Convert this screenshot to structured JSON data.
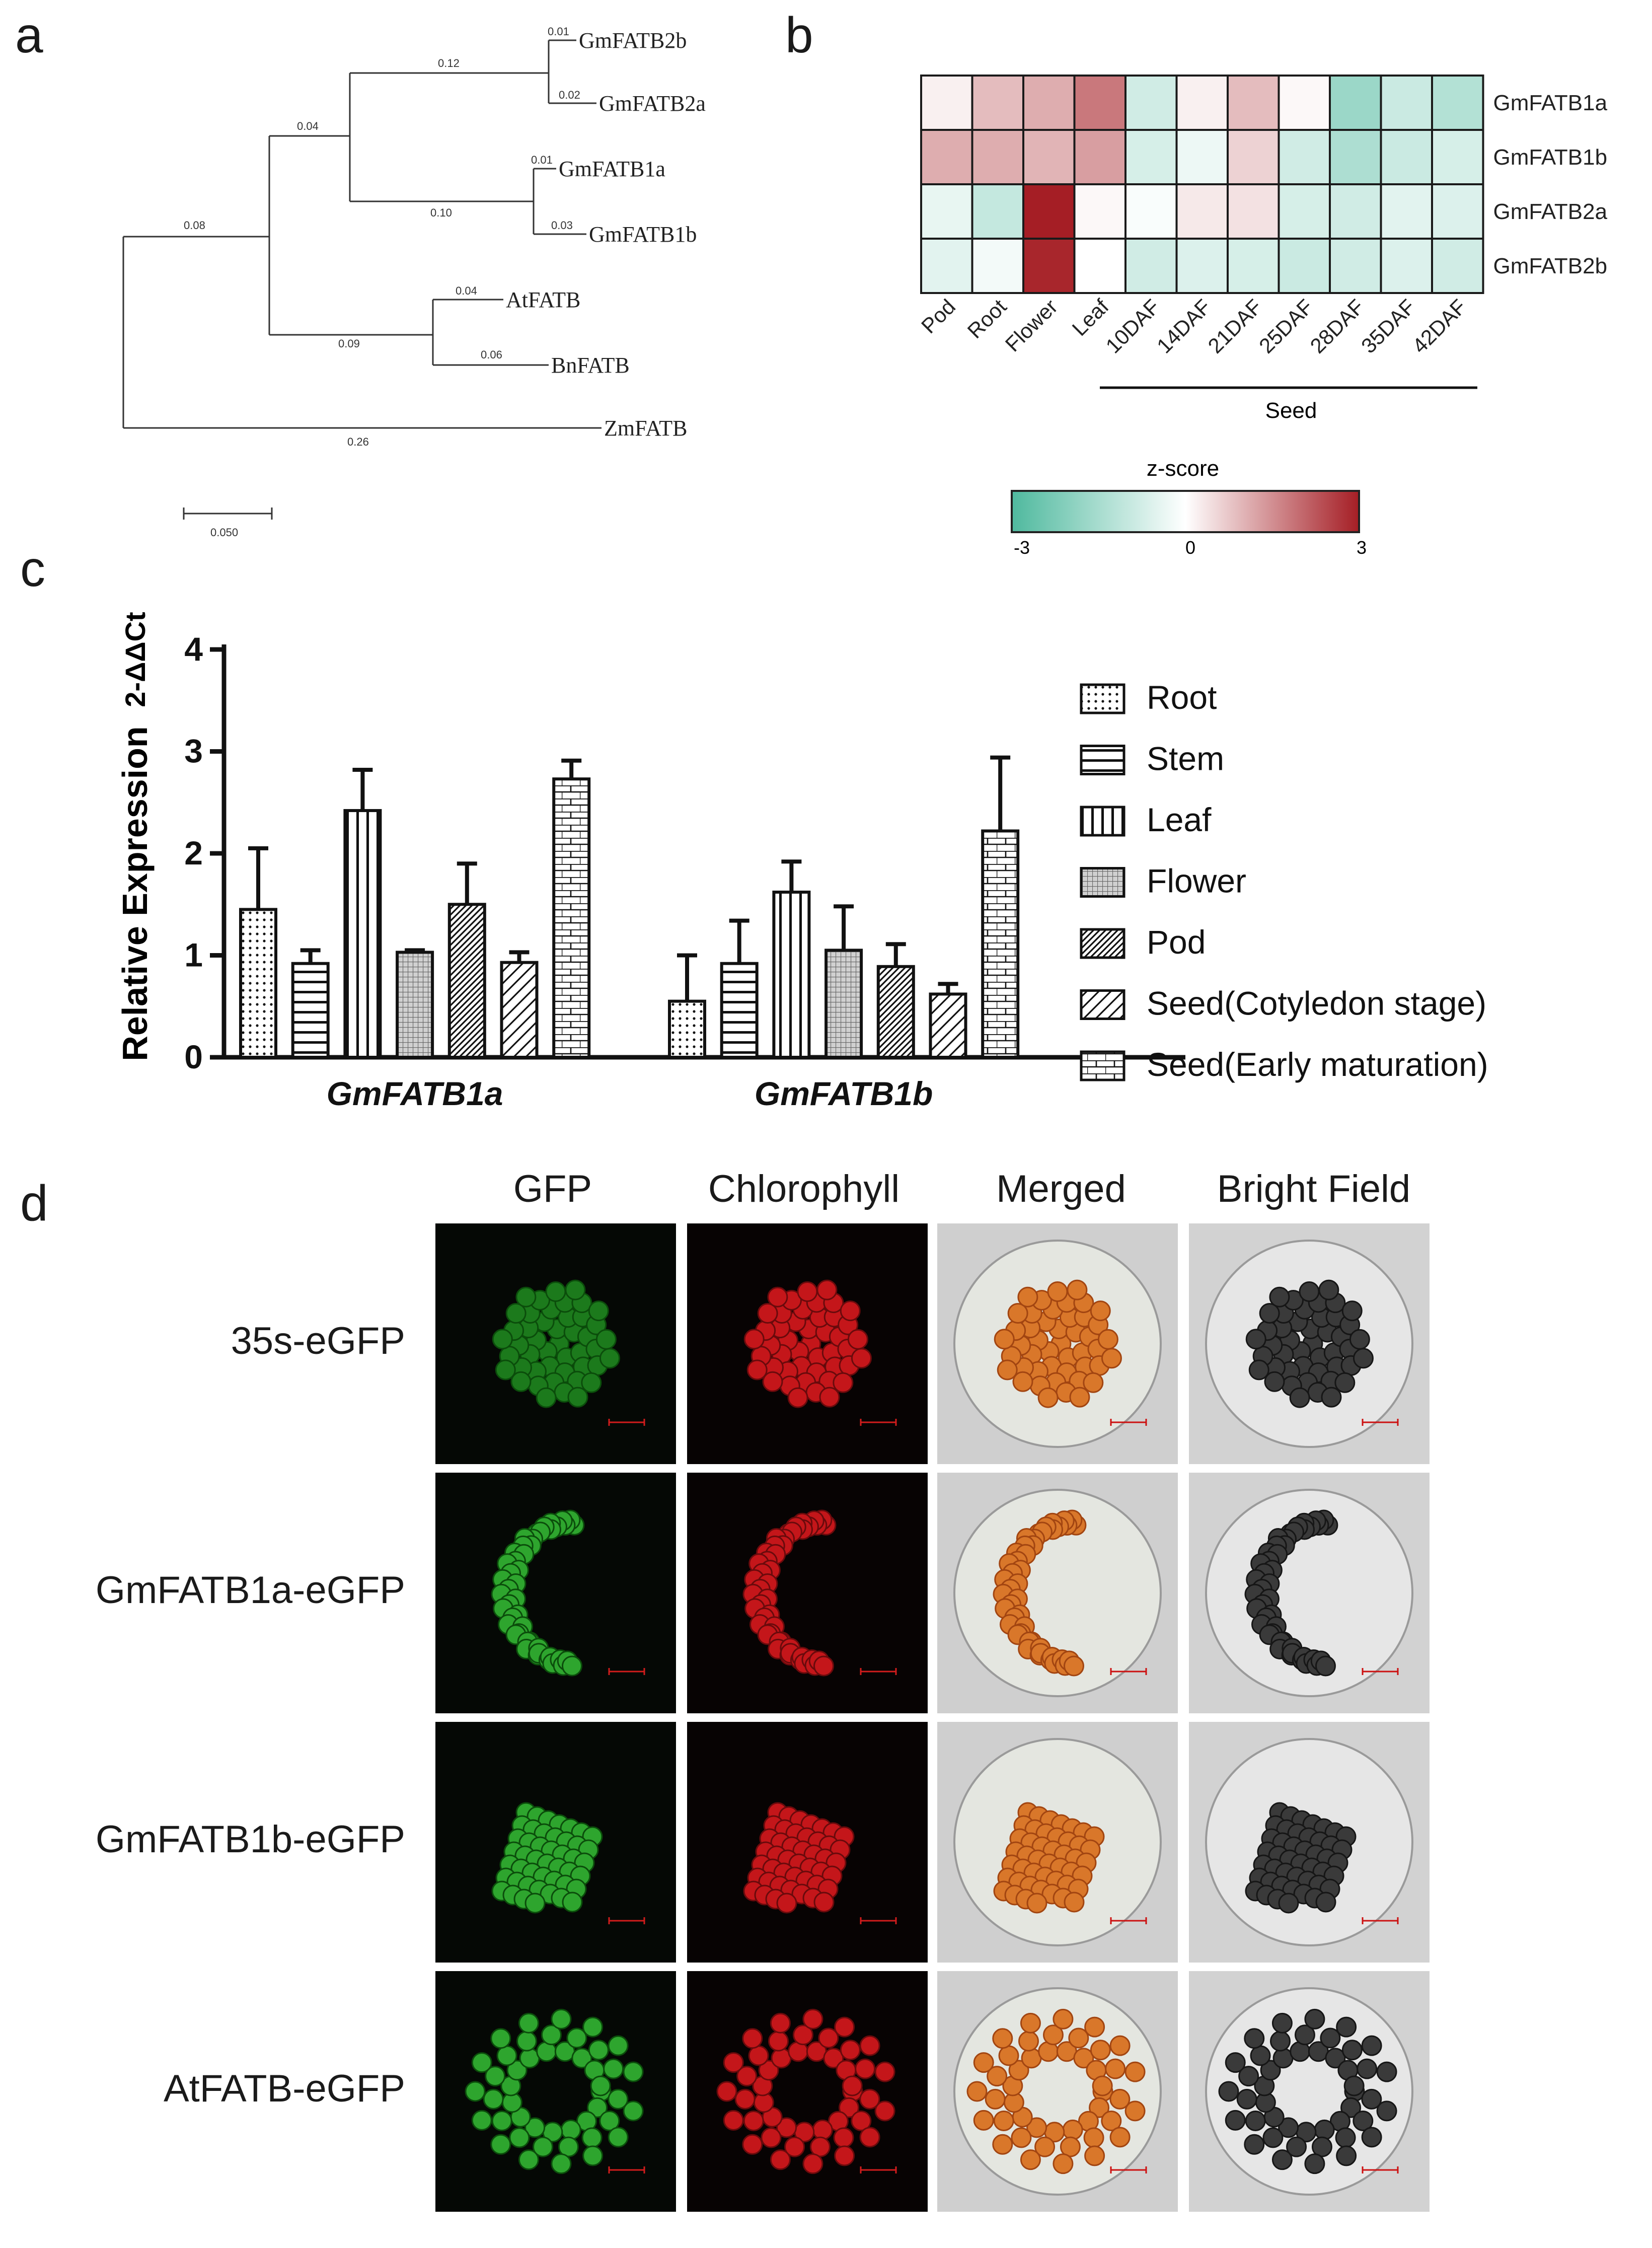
{
  "panels": {
    "a": "a",
    "b": "b",
    "c": "c",
    "d": "d"
  },
  "tree": {
    "taxa": [
      "GmFATB2b",
      "GmFATB2a",
      "GmFATB1a",
      "GmFATB1b",
      "AtFATB",
      "BnFATB",
      "ZmFATB"
    ],
    "branch_lengths": {
      "root_to_gm": "0.08",
      "root_to_zm": "0.26",
      "gm_to_gm2": "0.04",
      "gm_to_at_bn": "0.09",
      "gm2_to_fatb2": "0.12",
      "gm2_to_fatb1": "0.10",
      "fatb2b": "0.01",
      "fatb2a": "0.02",
      "fatb1a": "0.01",
      "fatb1b": "0.03",
      "atfatb": "0.04",
      "bnfatb": "0.06"
    },
    "scale_label": "0.050"
  },
  "heatmap": {
    "rows": [
      "GmFATB1a",
      "GmFATB1b",
      "GmFATB2a",
      "GmFATB2b"
    ],
    "columns": [
      "Pod",
      "Root",
      "Flower",
      "Leaf",
      "10DAF",
      "14DAF",
      "21DAF",
      "25DAF",
      "28DAF",
      "35DAF",
      "42DAF"
    ],
    "group_label": "Seed",
    "values": [
      [
        0.2,
        0.9,
        1.1,
        1.8,
        -0.8,
        0.2,
        0.9,
        0.1,
        -1.7,
        -0.9,
        -1.3
      ],
      [
        1.1,
        1.1,
        1.0,
        1.3,
        -0.7,
        -0.3,
        0.6,
        -0.8,
        -1.4,
        -0.9,
        -0.7
      ],
      [
        -0.4,
        -1.0,
        3.0,
        0.1,
        -0.1,
        0.3,
        0.4,
        -0.7,
        -0.8,
        -0.5,
        -0.6
      ],
      [
        -0.5,
        -0.2,
        2.9,
        0.0,
        -0.8,
        -0.6,
        -0.7,
        -0.9,
        -0.8,
        -0.6,
        -0.8
      ]
    ],
    "colorbar": {
      "title": "z-score",
      "ticks": [
        "-3",
        "0",
        "3"
      ],
      "min": -3,
      "max": 3,
      "colors": {
        "low": "#4fb99e",
        "mid": "#ffffff",
        "high": "#a51e25"
      }
    }
  },
  "chart_data": {
    "type": "bar",
    "ylabel": "Relative Expression",
    "y_unit": "2-ΔΔCt",
    "ylim": [
      0,
      4
    ],
    "yticks": [
      "0",
      "1",
      "2",
      "3",
      "4"
    ],
    "categories": [
      "GmFATB1a",
      "GmFATB1b"
    ],
    "series": [
      {
        "name": "Root",
        "pattern": "dots",
        "values": [
          1.45,
          0.55
        ],
        "errors": [
          0.6,
          0.45
        ]
      },
      {
        "name": "Stem",
        "pattern": "hlines",
        "values": [
          0.92,
          0.92
        ],
        "errors": [
          0.13,
          0.42
        ]
      },
      {
        "name": "Leaf",
        "pattern": "vlines",
        "values": [
          2.42,
          1.62
        ],
        "errors": [
          0.4,
          0.3
        ]
      },
      {
        "name": "Flower",
        "pattern": "grid",
        "values": [
          1.03,
          1.05
        ],
        "errors": [
          0.02,
          0.43
        ]
      },
      {
        "name": "Pod",
        "pattern": "dense-diag",
        "values": [
          1.5,
          0.89
        ],
        "errors": [
          0.4,
          0.22
        ]
      },
      {
        "name": "Seed(Cotyledon stage)",
        "pattern": "diag",
        "values": [
          0.93,
          0.62
        ],
        "errors": [
          0.1,
          0.1
        ]
      },
      {
        "name": "Seed(Early maturation)",
        "pattern": "brick",
        "values": [
          2.73,
          2.22
        ],
        "errors": [
          0.18,
          0.72
        ]
      }
    ],
    "legend_placement": "right"
  },
  "microscopy": {
    "columns": [
      "GFP",
      "Chlorophyll",
      "Merged",
      "Bright Field"
    ],
    "rows": [
      "35s-eGFP",
      "GmFATB1a-eGFP",
      "GmFATB1b-eGFP",
      "AtFATB-eGFP"
    ]
  }
}
